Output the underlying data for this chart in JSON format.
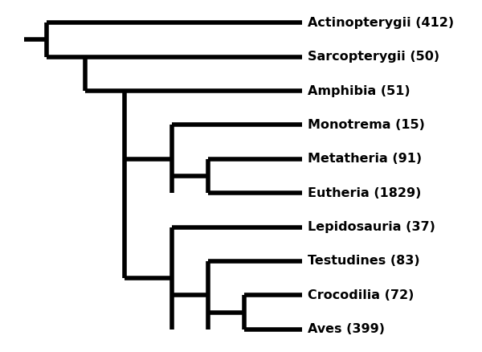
{
  "taxa": [
    "Actinopterygii (412)",
    "Sarcopterygii (50)",
    "Amphibia (51)",
    "Monotrema (15)",
    "Metatheria (91)",
    "Eutheria (1829)",
    "Lepidosauria (37)",
    "Testudines (83)",
    "Crocodilia (72)",
    "Aves (399)"
  ],
  "line_color": "#000000",
  "line_width": 4.0,
  "background_color": "#ffffff",
  "label_fontsize": 11.5,
  "label_fontweight": "bold",
  "figsize": [
    6.0,
    4.38
  ],
  "dpi": 100
}
